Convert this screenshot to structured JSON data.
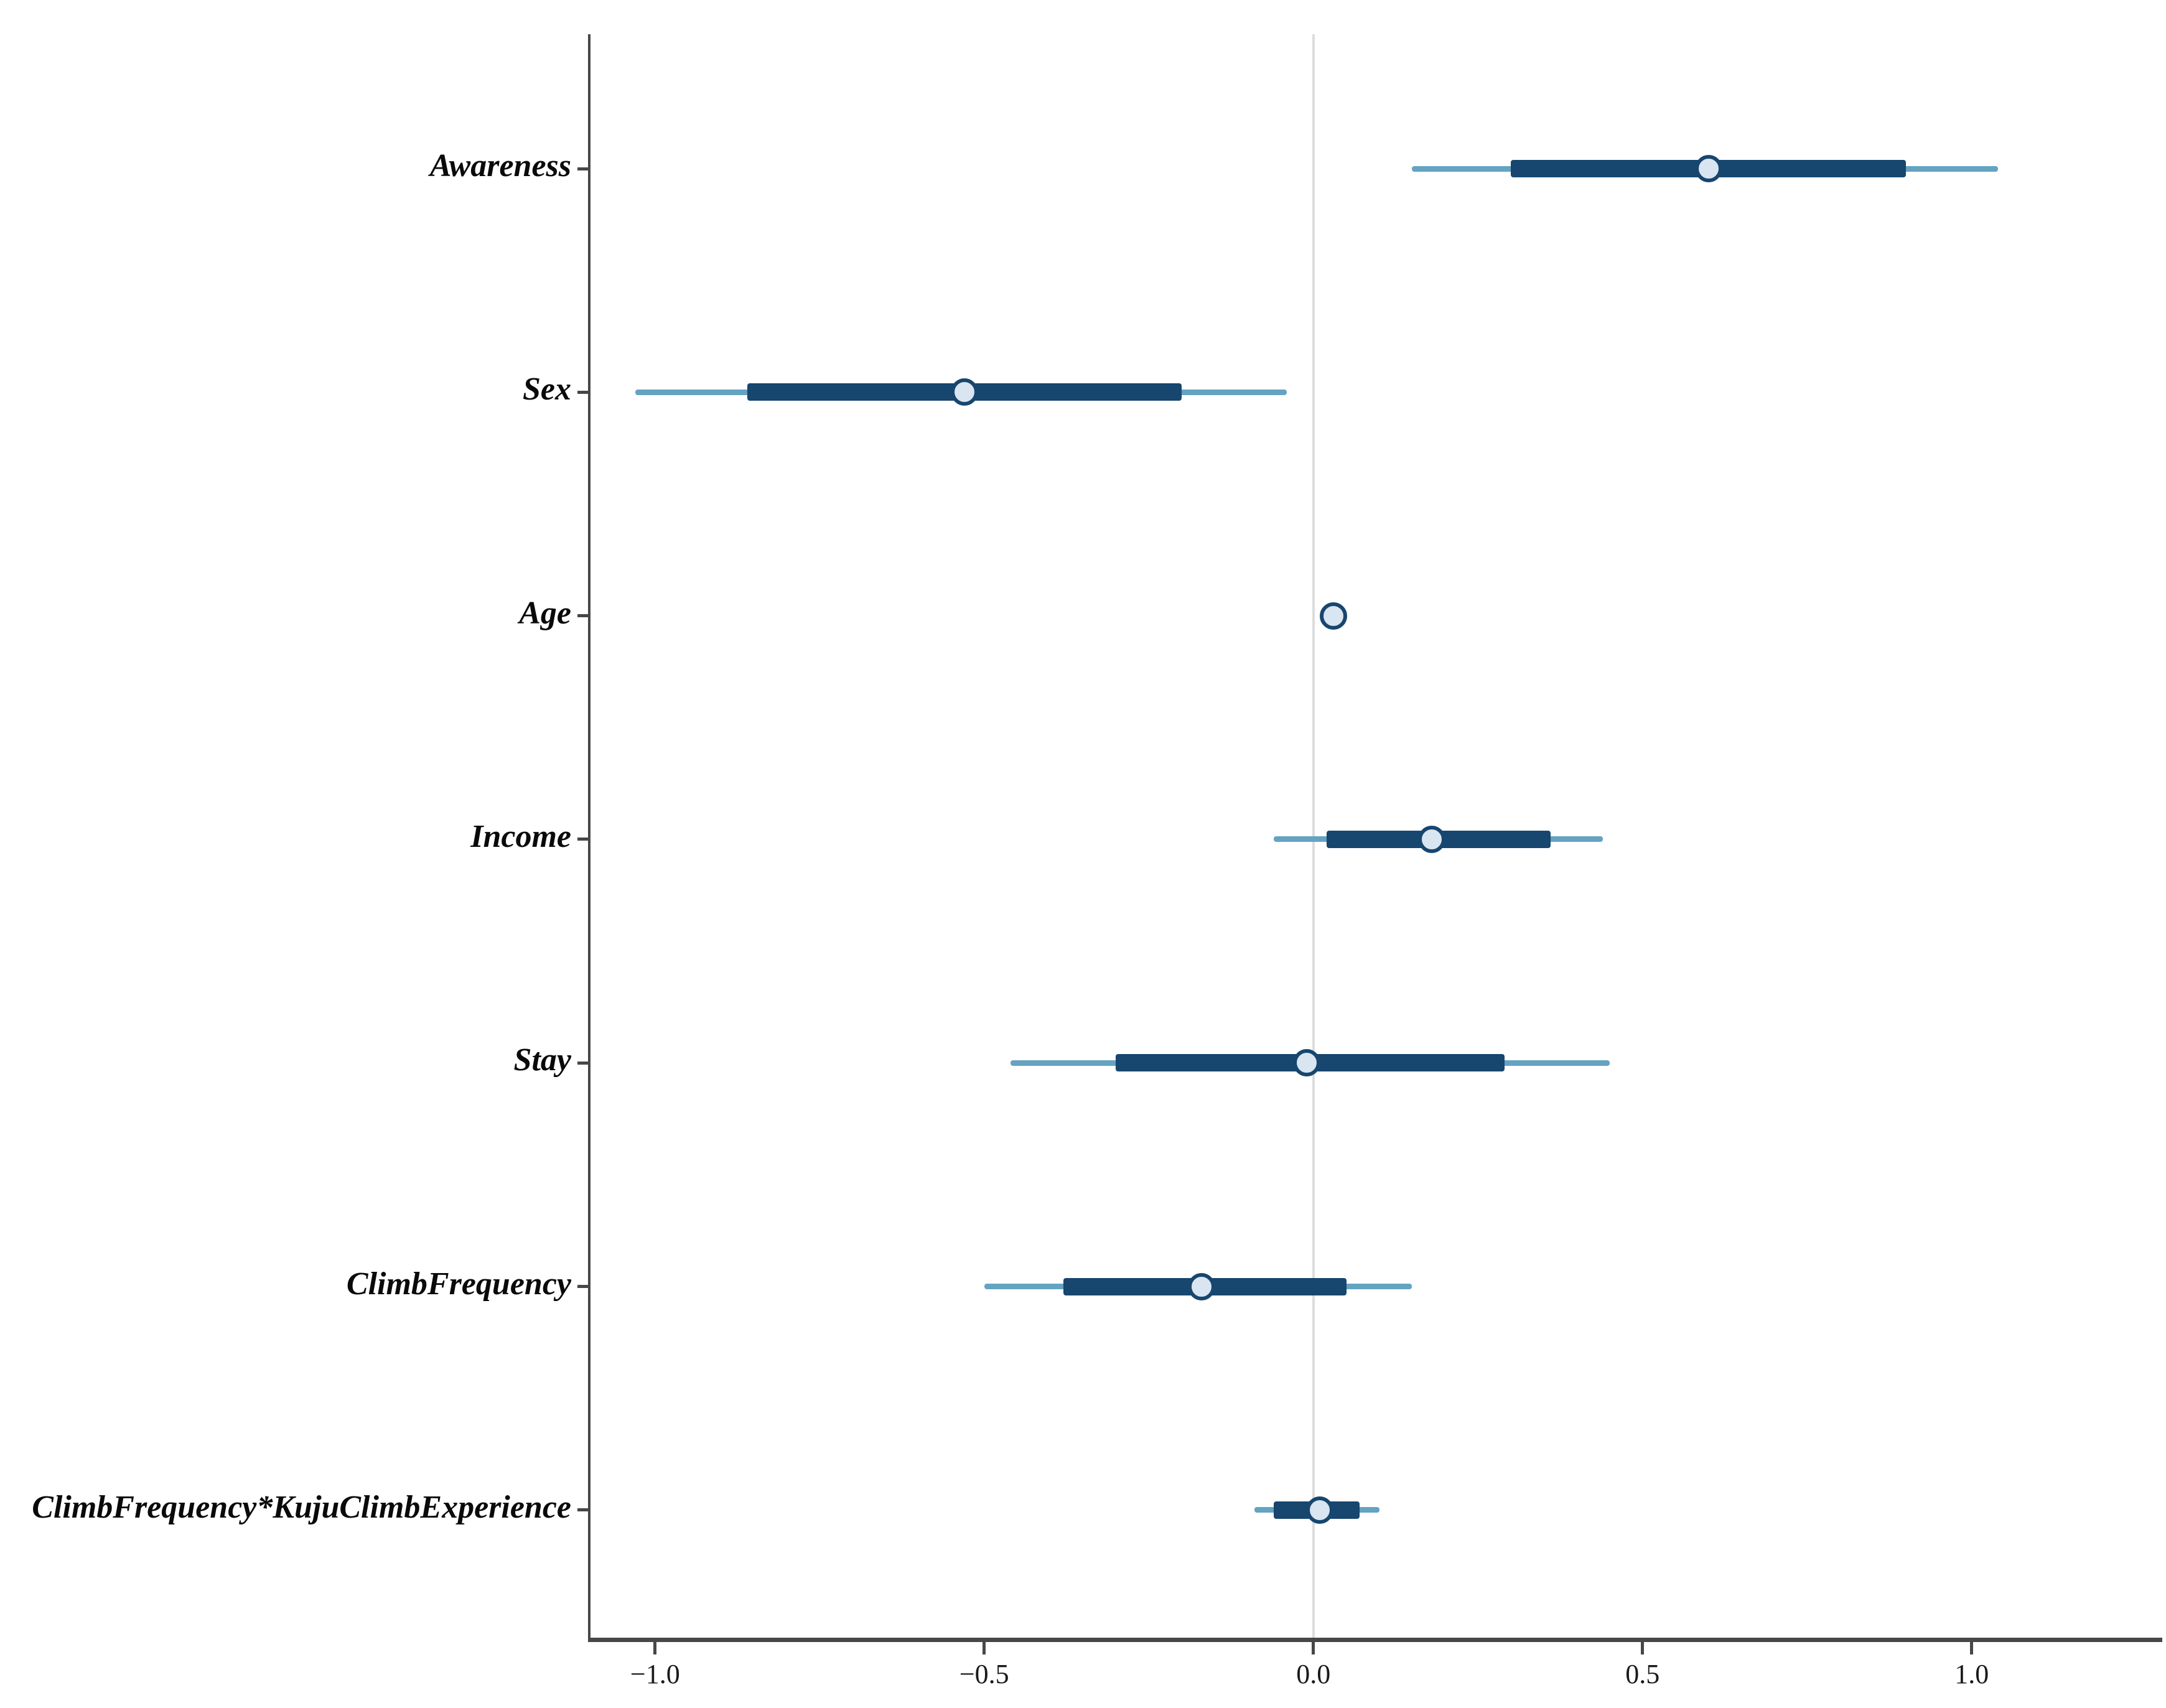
{
  "figure": {
    "background": "#ffffff",
    "title": ""
  },
  "chart_data": {
    "type": "scatter",
    "subtype": "forest-dot-whisker",
    "orientation": "horizontal",
    "title": "",
    "xlabel": "",
    "ylabel": "",
    "xlim": [
      -1.1,
      1.28
    ],
    "grid": {
      "zero_line": true,
      "zero_value": 0.0
    },
    "legend": "none",
    "x_ticks": [
      {
        "value": -1.0,
        "label": "−1.0"
      },
      {
        "value": -0.5,
        "label": "−0.5"
      },
      {
        "value": 0.0,
        "label": "0.0"
      },
      {
        "value": 0.5,
        "label": "0.5"
      },
      {
        "value": 1.0,
        "label": "1.0"
      }
    ],
    "series": [
      {
        "label": "Awareness",
        "estimate": 0.6,
        "inner_ci": [
          0.3,
          0.9
        ],
        "outer_ci": [
          0.15,
          1.04
        ]
      },
      {
        "label": "Sex",
        "estimate": -0.53,
        "inner_ci": [
          -0.86,
          -0.2
        ],
        "outer_ci": [
          -1.03,
          -0.04
        ]
      },
      {
        "label": "Age",
        "estimate": 0.03,
        "inner_ci": null,
        "outer_ci": null
      },
      {
        "label": "Income",
        "estimate": 0.18,
        "inner_ci": [
          0.02,
          0.36
        ],
        "outer_ci": [
          -0.06,
          0.44
        ]
      },
      {
        "label": "Stay",
        "estimate": -0.01,
        "inner_ci": [
          -0.3,
          0.29
        ],
        "outer_ci": [
          -0.46,
          0.45
        ]
      },
      {
        "label": "ClimbFrequency",
        "estimate": -0.17,
        "inner_ci": [
          -0.38,
          0.05
        ],
        "outer_ci": [
          -0.5,
          0.15
        ]
      },
      {
        "label": "ClimbFrequency*KujuClimbExperience",
        "estimate": 0.01,
        "inner_ci": [
          -0.06,
          0.07
        ],
        "outer_ci": [
          -0.09,
          0.1
        ]
      }
    ],
    "colors": {
      "inner_bar": "#17466f",
      "outer_line": "#64a3c2",
      "point_fill": "#d9e5f0",
      "point_border": "#17466f",
      "zero_gridline": "#dcdcdc",
      "axis": "#474747",
      "label_text": "#0a0a0a",
      "tick_text": "#1a1a1a"
    }
  }
}
